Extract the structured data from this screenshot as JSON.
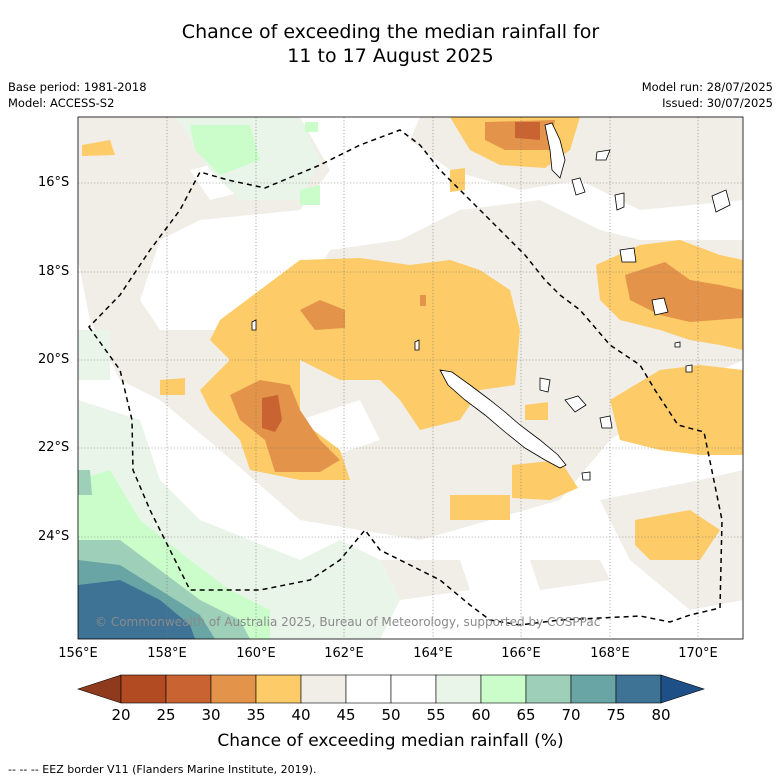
{
  "title": {
    "line1": "Chance of exceeding the median rainfall for",
    "line2": "11 to 17 August 2025"
  },
  "meta": {
    "base_period": "Base period: 1981-2018",
    "model": "Model: ACCESS-S2",
    "model_run": "Model run: 28/07/2025",
    "issued": "Issued: 30/07/2025"
  },
  "axes": {
    "lat_labels": [
      "16°S",
      "18°S",
      "20°S",
      "22°S",
      "24°S"
    ],
    "lon_labels": [
      "156°E",
      "158°E",
      "160°E",
      "162°E",
      "164°E",
      "166°E",
      "168°E",
      "170°E"
    ]
  },
  "colorbar": {
    "ticks": [
      "20",
      "25",
      "30",
      "35",
      "40",
      "45",
      "50",
      "55",
      "60",
      "65",
      "70",
      "75",
      "80"
    ],
    "colors": [
      "#8f3a1c",
      "#b24b22",
      "#c96432",
      "#e3944a",
      "#fdcb67",
      "#f1ede7",
      "#ffffff",
      "#ffffff",
      "#eaf5ea",
      "#cbfdcb",
      "#9ecfb8",
      "#6aa5a5",
      "#3e7396",
      "#1e4f86"
    ],
    "label": "Chance of exceeding median rainfall (%)"
  },
  "copyright": "© Commonwealth of Australia 2025, Bureau of Meteorology, supported by COSPPac",
  "legend_text": "--  --  -- EEZ border V11 (Flanders Marine Institute, 2019)."
}
